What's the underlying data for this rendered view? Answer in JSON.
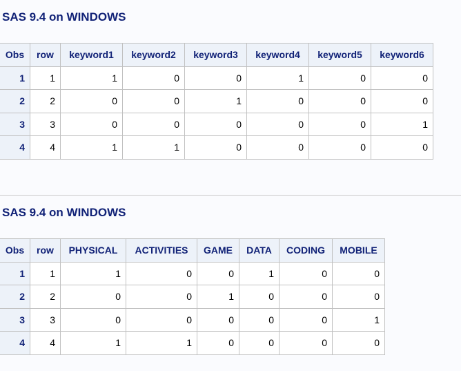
{
  "tables": [
    {
      "title": "SAS 9.4 on WINDOWS",
      "headers": [
        "Obs",
        "row",
        "keyword1",
        "keyword2",
        "keyword3",
        "keyword4",
        "keyword5",
        "keyword6"
      ],
      "rows": [
        [
          "1",
          "1",
          "1",
          "0",
          "0",
          "1",
          "0",
          "0"
        ],
        [
          "2",
          "2",
          "0",
          "0",
          "1",
          "0",
          "0",
          "0"
        ],
        [
          "3",
          "3",
          "0",
          "0",
          "0",
          "0",
          "0",
          "1"
        ],
        [
          "4",
          "4",
          "1",
          "1",
          "0",
          "0",
          "0",
          "0"
        ]
      ]
    },
    {
      "title": "SAS 9.4 on WINDOWS",
      "headers": [
        "Obs",
        "row",
        "PHYSICAL",
        "ACTIVITIES",
        "GAME",
        "DATA",
        "CODING",
        "MOBILE"
      ],
      "rows": [
        [
          "1",
          "1",
          "1",
          "0",
          "0",
          "1",
          "0",
          "0"
        ],
        [
          "2",
          "2",
          "0",
          "0",
          "1",
          "0",
          "0",
          "0"
        ],
        [
          "3",
          "3",
          "0",
          "0",
          "0",
          "0",
          "0",
          "1"
        ],
        [
          "4",
          "4",
          "1",
          "1",
          "0",
          "0",
          "0",
          "0"
        ]
      ]
    }
  ]
}
